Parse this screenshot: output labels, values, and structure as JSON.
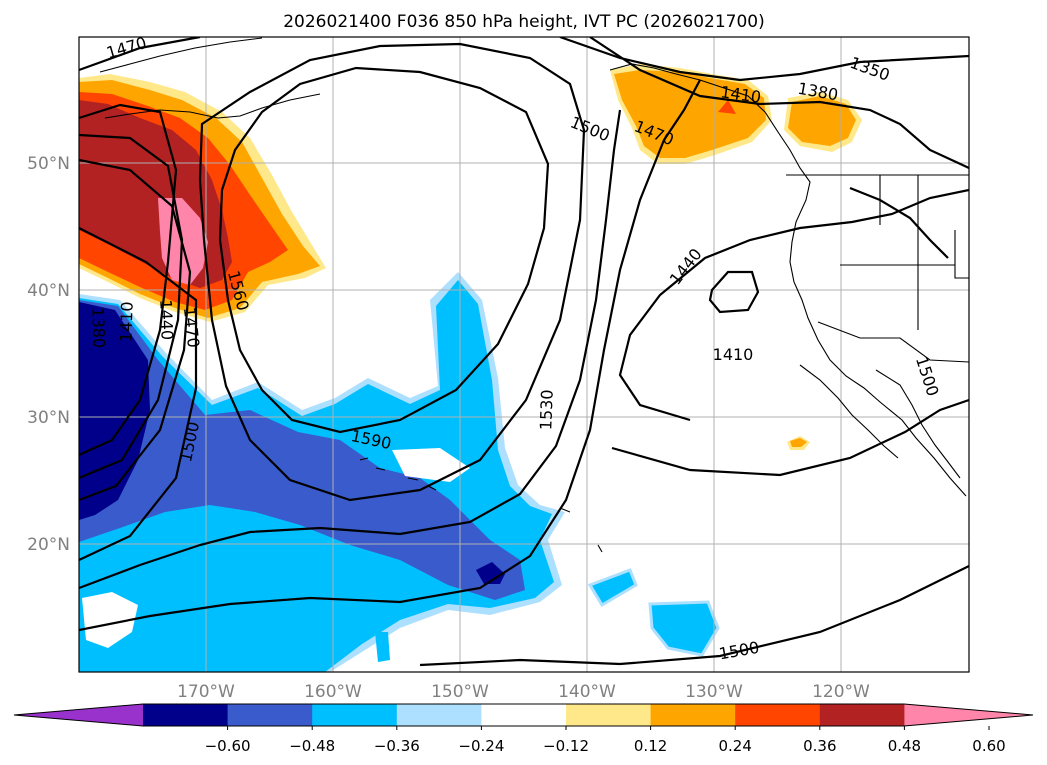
{
  "title": "2026021400 F036 850 hPa height, IVT PC (2026021700)",
  "lat_ticks": [
    "50°N",
    "40°N",
    "30°N",
    "20°N"
  ],
  "lon_ticks": [
    "170°W",
    "160°W",
    "150°W",
    "140°W",
    "130°W",
    "120°W"
  ],
  "colorbar": {
    "colors": [
      "#9932cc",
      "#00008b",
      "#3a5bcc",
      "#00bfff",
      "#addfff",
      "#ffffff",
      "#ffe88a",
      "#ffa500",
      "#ff4500",
      "#b22222",
      "#ff85aa"
    ],
    "labels": [
      "−0.60",
      "−0.48",
      "−0.36",
      "−0.24",
      "−0.12",
      "0.12",
      "0.24",
      "0.36",
      "0.48",
      "0.60"
    ]
  },
  "contour_labels": [
    "1470",
    "1350",
    "1410",
    "1380",
    "1500",
    "1470",
    "1560",
    "1380",
    "1410",
    "1440",
    "1470",
    "1440",
    "1410",
    "1530",
    "1590",
    "1500",
    "1500",
    "1500"
  ],
  "colors": {
    "contour": "#000000",
    "grid": "#b0b0b0",
    "coast": "#000000"
  }
}
